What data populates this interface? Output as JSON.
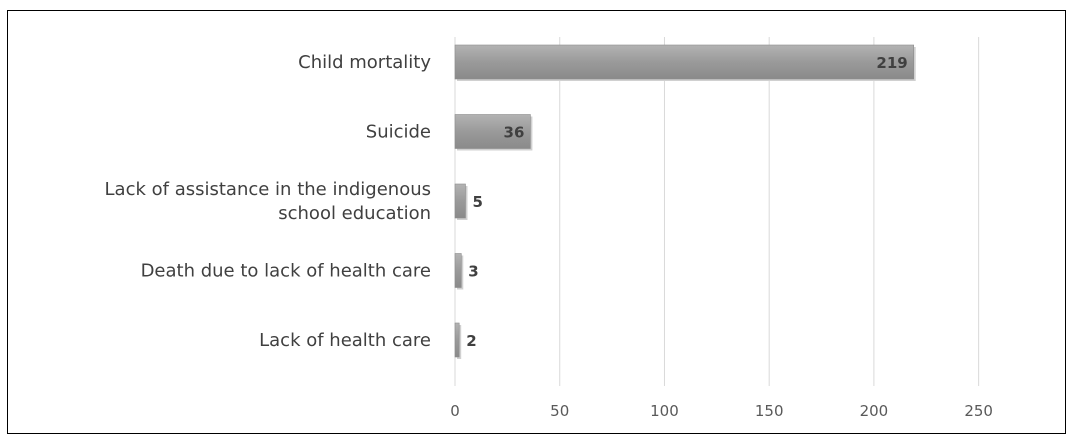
{
  "chart_data": {
    "type": "bar",
    "orientation": "horizontal",
    "categories": [
      [
        "Child mortality"
      ],
      [
        "Suicide"
      ],
      [
        "Lack of assistance in the indigenous",
        "school education"
      ],
      [
        "Death due to lack of health care"
      ],
      [
        "Lack of health care"
      ]
    ],
    "values": [
      219,
      36,
      5,
      3,
      2
    ],
    "data_labels": [
      "219",
      "36",
      "5",
      "3",
      "2"
    ],
    "xlim": [
      0,
      275
    ],
    "xticks": [
      0,
      50,
      100,
      150,
      200,
      250
    ],
    "xtick_labels": [
      "0",
      "50",
      "100",
      "150",
      "200",
      "250"
    ],
    "grid": true,
    "bar_color": "#9a9a9a",
    "grid_color": "#d9d9d9"
  }
}
